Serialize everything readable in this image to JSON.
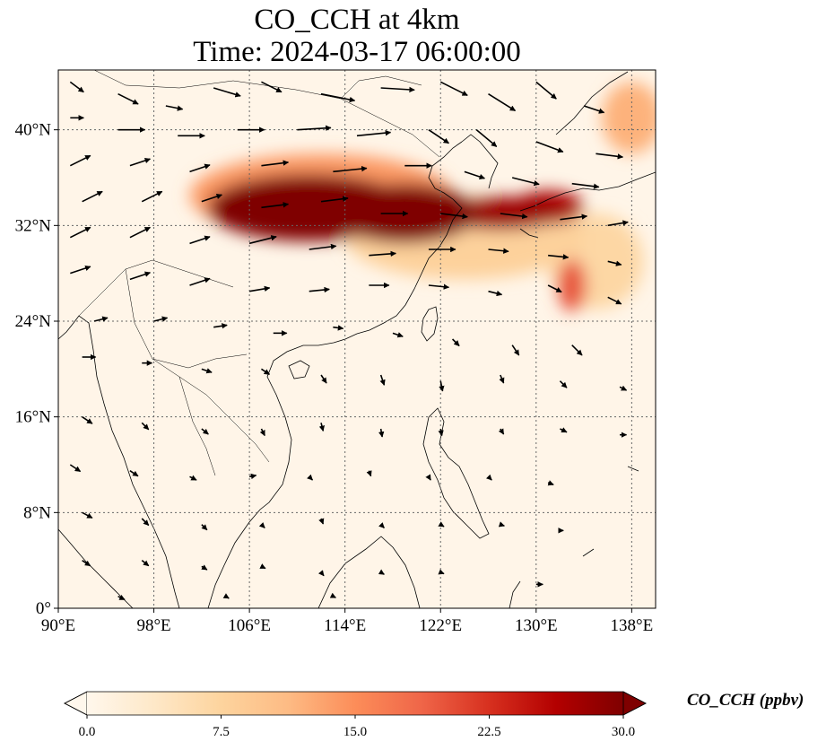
{
  "title_line1": "CO_CCH at 4km",
  "title_line2": "Time: 2024-03-17 06:00:00",
  "map": {
    "extent": {
      "lon_min": 90,
      "lon_max": 140,
      "lat_min": 0,
      "lat_max": 45
    },
    "lon_ticks": [
      {
        "value": 90,
        "label": "90°E"
      },
      {
        "value": 98,
        "label": "98°E"
      },
      {
        "value": 106,
        "label": "106°E"
      },
      {
        "value": 114,
        "label": "114°E"
      },
      {
        "value": 122,
        "label": "122°E"
      },
      {
        "value": 130,
        "label": "130°E"
      },
      {
        "value": 138,
        "label": "138°E"
      }
    ],
    "lat_ticks": [
      {
        "value": 0,
        "label": "0°"
      },
      {
        "value": 8,
        "label": "8°N"
      },
      {
        "value": 16,
        "label": "16°N"
      },
      {
        "value": 24,
        "label": "24°N"
      },
      {
        "value": 32,
        "label": "32°N"
      },
      {
        "value": 40,
        "label": "40°N"
      }
    ],
    "gridlines": true,
    "plume_regions": [
      {
        "lon": 111,
        "lat": 33.5,
        "rlon": 8.5,
        "rlat": 2.8,
        "value": 30
      },
      {
        "lon": 119,
        "lat": 33,
        "rlon": 6,
        "rlat": 2.5,
        "value": 30
      },
      {
        "lon": 127,
        "lat": 33,
        "rlon": 5,
        "rlat": 1.4,
        "value": 28
      },
      {
        "lon": 131,
        "lat": 33.5,
        "rlon": 3,
        "rlat": 1.4,
        "value": 27
      },
      {
        "lon": 133,
        "lat": 27,
        "rlon": 1.2,
        "rlat": 2.2,
        "value": 20
      },
      {
        "lon": 112,
        "lat": 34.5,
        "rlon": 11,
        "rlat": 3.5,
        "value": 14
      },
      {
        "lon": 124,
        "lat": 31,
        "rlon": 10,
        "rlat": 3.5,
        "value": 8
      },
      {
        "lon": 138,
        "lat": 41,
        "rlon": 2.5,
        "rlat": 3,
        "value": 12
      },
      {
        "lon": 135,
        "lat": 29,
        "rlon": 4,
        "rlat": 4,
        "value": 7
      }
    ],
    "wind_vectors": [
      {
        "lon": 91,
        "lat": 44,
        "u": 2,
        "v": -1.5
      },
      {
        "lon": 95,
        "lat": 43,
        "u": 3,
        "v": -1.5
      },
      {
        "lon": 99,
        "lat": 42,
        "u": 2.5,
        "v": -0.5
      },
      {
        "lon": 103,
        "lat": 43.5,
        "u": 4,
        "v": -1.2
      },
      {
        "lon": 107,
        "lat": 44,
        "u": 3,
        "v": -1.5
      },
      {
        "lon": 112,
        "lat": 43,
        "u": 5,
        "v": -1
      },
      {
        "lon": 117,
        "lat": 43.5,
        "u": 5,
        "v": -0.3
      },
      {
        "lon": 122,
        "lat": 44,
        "u": 4,
        "v": -2
      },
      {
        "lon": 126,
        "lat": 43,
        "u": 4,
        "v": -2.5
      },
      {
        "lon": 130,
        "lat": 44,
        "u": 3,
        "v": -2.5
      },
      {
        "lon": 134,
        "lat": 42,
        "u": 3,
        "v": -1
      },
      {
        "lon": 91,
        "lat": 41,
        "u": 2,
        "v": 0
      },
      {
        "lon": 95,
        "lat": 40,
        "u": 4,
        "v": 0
      },
      {
        "lon": 100,
        "lat": 39.5,
        "u": 4,
        "v": 0
      },
      {
        "lon": 105,
        "lat": 40,
        "u": 4,
        "v": 0
      },
      {
        "lon": 110,
        "lat": 40,
        "u": 5,
        "v": 0.3
      },
      {
        "lon": 115,
        "lat": 39.5,
        "u": 5,
        "v": 0.5
      },
      {
        "lon": 121,
        "lat": 40,
        "u": 3,
        "v": -2
      },
      {
        "lon": 125,
        "lat": 40,
        "u": 3,
        "v": -2.5
      },
      {
        "lon": 130,
        "lat": 39,
        "u": 4,
        "v": -1.5
      },
      {
        "lon": 135,
        "lat": 38,
        "u": 4,
        "v": -0.5
      },
      {
        "lon": 91,
        "lat": 37,
        "u": 3,
        "v": 1.5
      },
      {
        "lon": 96,
        "lat": 37,
        "u": 3,
        "v": 1
      },
      {
        "lon": 101,
        "lat": 36.5,
        "u": 3,
        "v": 1
      },
      {
        "lon": 107,
        "lat": 37,
        "u": 4,
        "v": 0.5
      },
      {
        "lon": 113,
        "lat": 36.5,
        "u": 5,
        "v": 0.5
      },
      {
        "lon": 119,
        "lat": 37,
        "u": 4,
        "v": 0
      },
      {
        "lon": 124,
        "lat": 36.5,
        "u": 3,
        "v": -1
      },
      {
        "lon": 128,
        "lat": 36,
        "u": 4,
        "v": -1
      },
      {
        "lon": 133,
        "lat": 35.5,
        "u": 4,
        "v": -0.5
      },
      {
        "lon": 92,
        "lat": 34,
        "u": 3,
        "v": 1.5
      },
      {
        "lon": 97,
        "lat": 34,
        "u": 3,
        "v": 1.5
      },
      {
        "lon": 102,
        "lat": 34,
        "u": 3,
        "v": 1
      },
      {
        "lon": 107,
        "lat": 33.5,
        "u": 4,
        "v": 0.5
      },
      {
        "lon": 112,
        "lat": 34,
        "u": 4,
        "v": 0.5
      },
      {
        "lon": 117,
        "lat": 33,
        "u": 4,
        "v": 0
      },
      {
        "lon": 122,
        "lat": 33,
        "u": 4,
        "v": -0.5
      },
      {
        "lon": 127,
        "lat": 33,
        "u": 4,
        "v": -0.5
      },
      {
        "lon": 132,
        "lat": 32.5,
        "u": 4,
        "v": 0.5
      },
      {
        "lon": 136,
        "lat": 32,
        "u": 3,
        "v": 0.5
      },
      {
        "lon": 91,
        "lat": 31,
        "u": 3,
        "v": 1.5
      },
      {
        "lon": 96,
        "lat": 31,
        "u": 3,
        "v": 1.5
      },
      {
        "lon": 101,
        "lat": 30.5,
        "u": 3,
        "v": 1
      },
      {
        "lon": 106,
        "lat": 30.5,
        "u": 4,
        "v": 1
      },
      {
        "lon": 111,
        "lat": 30,
        "u": 4,
        "v": 0.5
      },
      {
        "lon": 116,
        "lat": 29.5,
        "u": 4,
        "v": 0.3
      },
      {
        "lon": 121,
        "lat": 30,
        "u": 4,
        "v": 0
      },
      {
        "lon": 126,
        "lat": 30,
        "u": 3,
        "v": -0.3
      },
      {
        "lon": 131,
        "lat": 29.5,
        "u": 3,
        "v": -0.3
      },
      {
        "lon": 136,
        "lat": 29,
        "u": 2,
        "v": -0.5
      },
      {
        "lon": 91,
        "lat": 28,
        "u": 3,
        "v": 1
      },
      {
        "lon": 96,
        "lat": 27.5,
        "u": 3,
        "v": 1
      },
      {
        "lon": 101,
        "lat": 27,
        "u": 3,
        "v": 1
      },
      {
        "lon": 106,
        "lat": 26.5,
        "u": 3,
        "v": 0.5
      },
      {
        "lon": 111,
        "lat": 26.5,
        "u": 3,
        "v": 0.3
      },
      {
        "lon": 116,
        "lat": 27,
        "u": 3,
        "v": 0
      },
      {
        "lon": 121,
        "lat": 27,
        "u": 3,
        "v": -0.3
      },
      {
        "lon": 126,
        "lat": 26.5,
        "u": 2,
        "v": -0.5
      },
      {
        "lon": 131,
        "lat": 27,
        "u": 2,
        "v": -1
      },
      {
        "lon": 136,
        "lat": 26,
        "u": 2,
        "v": -1
      },
      {
        "lon": 93,
        "lat": 24,
        "u": 2,
        "v": 0.5
      },
      {
        "lon": 98,
        "lat": 24,
        "u": 2,
        "v": 0.5
      },
      {
        "lon": 103,
        "lat": 23.5,
        "u": 2,
        "v": 0.3
      },
      {
        "lon": 108,
        "lat": 23,
        "u": 2,
        "v": 0
      },
      {
        "lon": 113,
        "lat": 23.5,
        "u": 1.5,
        "v": -0.2
      },
      {
        "lon": 118,
        "lat": 23,
        "u": 1.5,
        "v": -0.5
      },
      {
        "lon": 123,
        "lat": 22.5,
        "u": 1,
        "v": -1
      },
      {
        "lon": 128,
        "lat": 22,
        "u": 1,
        "v": -1.5
      },
      {
        "lon": 133,
        "lat": 22,
        "u": 1.5,
        "v": -1.5
      },
      {
        "lon": 92,
        "lat": 21,
        "u": 2,
        "v": 0
      },
      {
        "lon": 97,
        "lat": 20.5,
        "u": 1.5,
        "v": 0
      },
      {
        "lon": 102,
        "lat": 20,
        "u": 1.5,
        "v": -0.5
      },
      {
        "lon": 107,
        "lat": 20,
        "u": 1.2,
        "v": -0.8
      },
      {
        "lon": 112,
        "lat": 19.5,
        "u": 0.8,
        "v": -1.2
      },
      {
        "lon": 117,
        "lat": 19.5,
        "u": 0.5,
        "v": -1.5
      },
      {
        "lon": 122,
        "lat": 19,
        "u": 0.3,
        "v": -1.5
      },
      {
        "lon": 127,
        "lat": 19.5,
        "u": 0.5,
        "v": -1.2
      },
      {
        "lon": 132,
        "lat": 19,
        "u": 1,
        "v": -1
      },
      {
        "lon": 137,
        "lat": 18.5,
        "u": 1,
        "v": -0.5
      },
      {
        "lon": 92,
        "lat": 16,
        "u": 1.5,
        "v": -1
      },
      {
        "lon": 97,
        "lat": 15.5,
        "u": 1,
        "v": -1
      },
      {
        "lon": 102,
        "lat": 15,
        "u": 1,
        "v": -0.8
      },
      {
        "lon": 107,
        "lat": 15,
        "u": 0.5,
        "v": -1
      },
      {
        "lon": 112,
        "lat": 15.5,
        "u": 0.3,
        "v": -1.2
      },
      {
        "lon": 117,
        "lat": 15,
        "u": 0.2,
        "v": -1.2
      },
      {
        "lon": 122,
        "lat": 15,
        "u": 0.2,
        "v": -1
      },
      {
        "lon": 127,
        "lat": 15,
        "u": 0.5,
        "v": -0.8
      },
      {
        "lon": 132,
        "lat": 15,
        "u": 1,
        "v": -0.5
      },
      {
        "lon": 137,
        "lat": 14.5,
        "u": 1,
        "v": 0
      },
      {
        "lon": 91,
        "lat": 12,
        "u": 1.5,
        "v": -1
      },
      {
        "lon": 96,
        "lat": 11.5,
        "u": 1.2,
        "v": -0.8
      },
      {
        "lon": 101,
        "lat": 11,
        "u": 1,
        "v": -0.5
      },
      {
        "lon": 106,
        "lat": 11,
        "u": 1,
        "v": 0.2
      },
      {
        "lon": 111,
        "lat": 11,
        "u": 0.5,
        "v": -0.5
      },
      {
        "lon": 116,
        "lat": 11.5,
        "u": 0.3,
        "v": -0.8
      },
      {
        "lon": 121,
        "lat": 11,
        "u": 0.3,
        "v": -0.5
      },
      {
        "lon": 126,
        "lat": 11,
        "u": 0.5,
        "v": -0.5
      },
      {
        "lon": 131,
        "lat": 10.5,
        "u": 0.8,
        "v": -0.3
      },
      {
        "lon": 92,
        "lat": 8,
        "u": 1.5,
        "v": -0.8
      },
      {
        "lon": 97,
        "lat": 7.5,
        "u": 1,
        "v": -1
      },
      {
        "lon": 102,
        "lat": 7,
        "u": 0.8,
        "v": -0.8
      },
      {
        "lon": 107,
        "lat": 7,
        "u": 0.5,
        "v": -0.5
      },
      {
        "lon": 112,
        "lat": 7.5,
        "u": 0.3,
        "v": -0.8
      },
      {
        "lon": 117,
        "lat": 7,
        "u": 0.5,
        "v": -0.5
      },
      {
        "lon": 122,
        "lat": 7,
        "u": 0.5,
        "v": -0.3
      },
      {
        "lon": 127,
        "lat": 7,
        "u": 0.6,
        "v": -0.2
      },
      {
        "lon": 132,
        "lat": 6.5,
        "u": 0.5,
        "v": 0
      },
      {
        "lon": 92,
        "lat": 4,
        "u": 1.2,
        "v": -0.8
      },
      {
        "lon": 97,
        "lat": 4,
        "u": 1,
        "v": -0.8
      },
      {
        "lon": 102,
        "lat": 3.5,
        "u": 0.8,
        "v": -0.5
      },
      {
        "lon": 107,
        "lat": 3.5,
        "u": 0.6,
        "v": -0.3
      },
      {
        "lon": 112,
        "lat": 3,
        "u": 0.4,
        "v": -0.5
      },
      {
        "lon": 117,
        "lat": 3,
        "u": 0.5,
        "v": -0.3
      },
      {
        "lon": 122,
        "lat": 3,
        "u": 0.5,
        "v": -0.2
      },
      {
        "lon": 130,
        "lat": 2,
        "u": 1,
        "v": 0
      },
      {
        "lon": 95,
        "lat": 1,
        "u": 1,
        "v": -0.5
      },
      {
        "lon": 104,
        "lat": 1,
        "u": 0.5,
        "v": -0.3
      },
      {
        "lon": 113,
        "lat": 1,
        "u": 0.4,
        "v": -0.2
      }
    ]
  },
  "colorbar": {
    "label": "CO_CCH (ppbv)",
    "min": 0,
    "max": 30,
    "extend": "both",
    "colormap": [
      "#fff7ec",
      "#fee8c8",
      "#fdd49e",
      "#fdbb84",
      "#fc8d59",
      "#ef6548",
      "#d7301f",
      "#b30000",
      "#7f0000"
    ],
    "ticks": [
      {
        "value": 0,
        "label": "0.0"
      },
      {
        "value": 7.5,
        "label": "7.5"
      },
      {
        "value": 15,
        "label": "15.0"
      },
      {
        "value": 22.5,
        "label": "22.5"
      },
      {
        "value": 30,
        "label": "30.0"
      }
    ]
  },
  "colors": {
    "background": "#fff5e8",
    "coastline": "#000000",
    "grid": "#666666",
    "arrow": "#000000"
  }
}
